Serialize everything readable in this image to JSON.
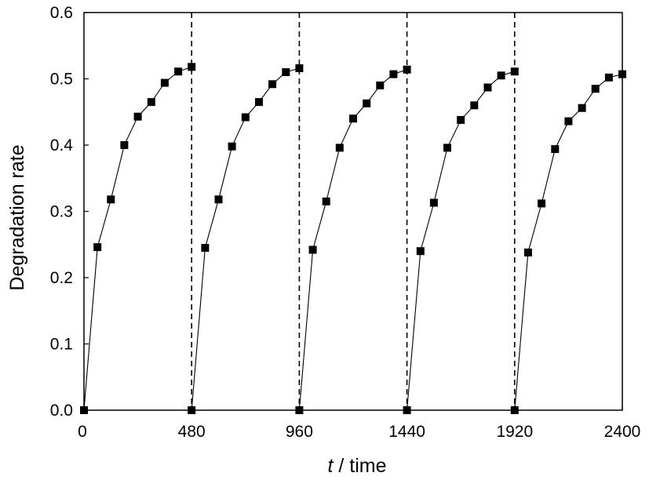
{
  "chart_data": {
    "type": "line",
    "title": "",
    "xlabel_italic": "t",
    "xlabel_rest": " / time",
    "ylabel": "Degradation rate",
    "xlim": [
      0,
      2400
    ],
    "ylim": [
      0,
      0.6
    ],
    "xticks": [
      0,
      480,
      960,
      1440,
      1920,
      2400
    ],
    "xtick_labels": [
      "0",
      "480",
      "960",
      "1440",
      "1920",
      "2400"
    ],
    "yticks": [
      0.0,
      0.1,
      0.2,
      0.3,
      0.4,
      0.5,
      0.6
    ],
    "ytick_labels": [
      "0.0",
      "0.1",
      "0.2",
      "0.3",
      "0.4",
      "0.5",
      "0.6"
    ],
    "grid": false,
    "legend": "none",
    "cycle_boundaries": [
      480,
      960,
      1440,
      1920
    ],
    "marker": "square",
    "color": "#000000",
    "series": [
      {
        "x": [
          0,
          60,
          120,
          180,
          240,
          300,
          360,
          420,
          480
        ],
        "y": [
          0.0,
          0.246,
          0.318,
          0.4,
          0.443,
          0.465,
          0.494,
          0.511,
          0.518
        ]
      },
      {
        "x": [
          480,
          540,
          600,
          660,
          720,
          780,
          840,
          900,
          960
        ],
        "y": [
          0.0,
          0.245,
          0.318,
          0.398,
          0.442,
          0.465,
          0.492,
          0.51,
          0.516
        ]
      },
      {
        "x": [
          960,
          1020,
          1080,
          1140,
          1200,
          1260,
          1320,
          1380,
          1440
        ],
        "y": [
          0.0,
          0.242,
          0.315,
          0.396,
          0.44,
          0.463,
          0.49,
          0.507,
          0.514
        ]
      },
      {
        "x": [
          1440,
          1500,
          1560,
          1620,
          1680,
          1740,
          1800,
          1860,
          1920
        ],
        "y": [
          0.0,
          0.24,
          0.313,
          0.396,
          0.438,
          0.46,
          0.487,
          0.505,
          0.511
        ]
      },
      {
        "x": [
          1920,
          1980,
          2040,
          2100,
          2160,
          2220,
          2280,
          2340,
          2400
        ],
        "y": [
          0.0,
          0.238,
          0.312,
          0.394,
          0.436,
          0.456,
          0.485,
          0.502,
          0.507
        ]
      }
    ]
  }
}
